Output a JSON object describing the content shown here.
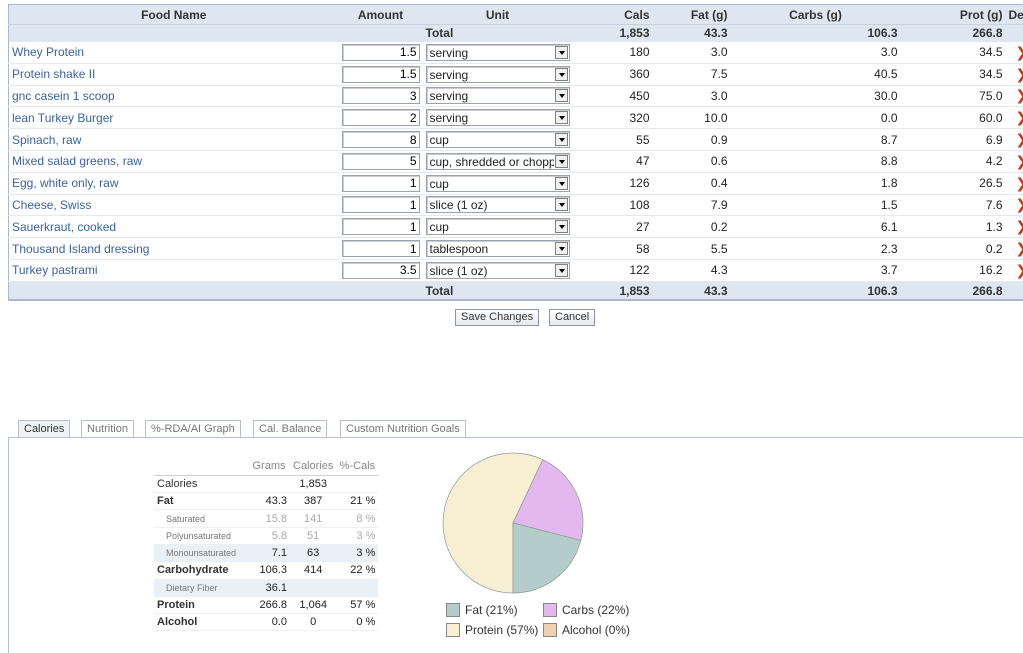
{
  "food_table": {
    "headers": {
      "food_name": "Food Name",
      "amount": "Amount",
      "unit": "Unit",
      "cals": "Cals",
      "fat": "Fat (g)",
      "carbs": "Carbs (g)",
      "prot": "Prot (g)",
      "del": "Del"
    },
    "total": {
      "label": "Total",
      "cals": "1,853",
      "fat": "43.3",
      "carbs": "106.3",
      "prot": "266.8"
    },
    "rows": [
      {
        "name": "Whey Protein",
        "amount": "1.5",
        "unit": "serving",
        "cals": "180",
        "fat": "3.0",
        "carbs": "3.0",
        "prot": "34.5"
      },
      {
        "name": "Protein shake II",
        "amount": "1.5",
        "unit": "serving",
        "cals": "360",
        "fat": "7.5",
        "carbs": "40.5",
        "prot": "34.5"
      },
      {
        "name": "gnc casein 1 scoop",
        "amount": "3",
        "unit": "serving",
        "cals": "450",
        "fat": "3.0",
        "carbs": "30.0",
        "prot": "75.0"
      },
      {
        "name": "lean Turkey Burger",
        "amount": "2",
        "unit": "serving",
        "cals": "320",
        "fat": "10.0",
        "carbs": "0.0",
        "prot": "60.0"
      },
      {
        "name": "Spinach, raw",
        "amount": "8",
        "unit": "cup",
        "cals": "55",
        "fat": "0.9",
        "carbs": "8.7",
        "prot": "6.9"
      },
      {
        "name": "Mixed salad greens, raw",
        "amount": "5",
        "unit": "cup, shredded or chopp",
        "cals": "47",
        "fat": "0.6",
        "carbs": "8.8",
        "prot": "4.2"
      },
      {
        "name": "Egg, white only, raw",
        "amount": "1",
        "unit": "cup",
        "cals": "126",
        "fat": "0.4",
        "carbs": "1.8",
        "prot": "26.5"
      },
      {
        "name": "Cheese, Swiss",
        "amount": "1",
        "unit": "slice (1 oz)",
        "cals": "108",
        "fat": "7.9",
        "carbs": "1.5",
        "prot": "7.6"
      },
      {
        "name": "Sauerkraut, cooked",
        "amount": "1",
        "unit": "cup",
        "cals": "27",
        "fat": "0.2",
        "carbs": "6.1",
        "prot": "1.3"
      },
      {
        "name": "Thousand Island dressing",
        "amount": "1",
        "unit": "tablespoon",
        "cals": "58",
        "fat": "5.5",
        "carbs": "2.3",
        "prot": "0.2"
      },
      {
        "name": "Turkey pastrami",
        "amount": "3.5",
        "unit": "slice (1 oz)",
        "cals": "122",
        "fat": "4.3",
        "carbs": "3.7",
        "prot": "16.2"
      }
    ],
    "del_icon": "chevron-right-icon"
  },
  "buttons": {
    "save": "Save Changes",
    "cancel": "Cancel"
  },
  "tabs": [
    "Calories",
    "Nutrition",
    "%-RDA/AI Graph",
    "Cal. Balance",
    "Custom Nutrition Goals"
  ],
  "nutrients": {
    "headers": {
      "grams": "Grams",
      "calories": "Calories",
      "pct": "%-Cals"
    },
    "rows": [
      {
        "label": "Calories",
        "grams": "",
        "calories": "1,853",
        "pct": ""
      },
      {
        "label": "Fat",
        "grams": "43.3",
        "calories": "387",
        "pct": "21 %"
      },
      {
        "label": "Saturated",
        "grams": "15.8",
        "calories": "141",
        "pct": "8 %"
      },
      {
        "label": "Polyunsaturated",
        "grams": "5.8",
        "calories": "51",
        "pct": "3 %"
      },
      {
        "label": "Monounsaturated",
        "grams": "7.1",
        "calories": "63",
        "pct": "3 %"
      },
      {
        "label": "Carbohydrate",
        "grams": "106.3",
        "calories": "414",
        "pct": "22 %"
      },
      {
        "label": "Dietary Fiber",
        "grams": "36.1",
        "calories": "",
        "pct": ""
      },
      {
        "label": "Protein",
        "grams": "266.8",
        "calories": "1,064",
        "pct": "57 %"
      },
      {
        "label": "Alcohol",
        "grams": "0.0",
        "calories": "0",
        "pct": "0 %"
      }
    ]
  },
  "chart_data": {
    "type": "pie",
    "categories": [
      "Fat",
      "Carbs",
      "Protein",
      "Alcohol"
    ],
    "values": [
      21,
      22,
      57,
      0
    ],
    "colors": [
      "#b5cdca",
      "#e3b8ee",
      "#f8efd2",
      "#f2cfb0"
    ],
    "legend": [
      "Fat  (21%)",
      "Carbs  (22%)",
      "Protein  (57%)",
      "Alcohol  (0%)"
    ]
  }
}
